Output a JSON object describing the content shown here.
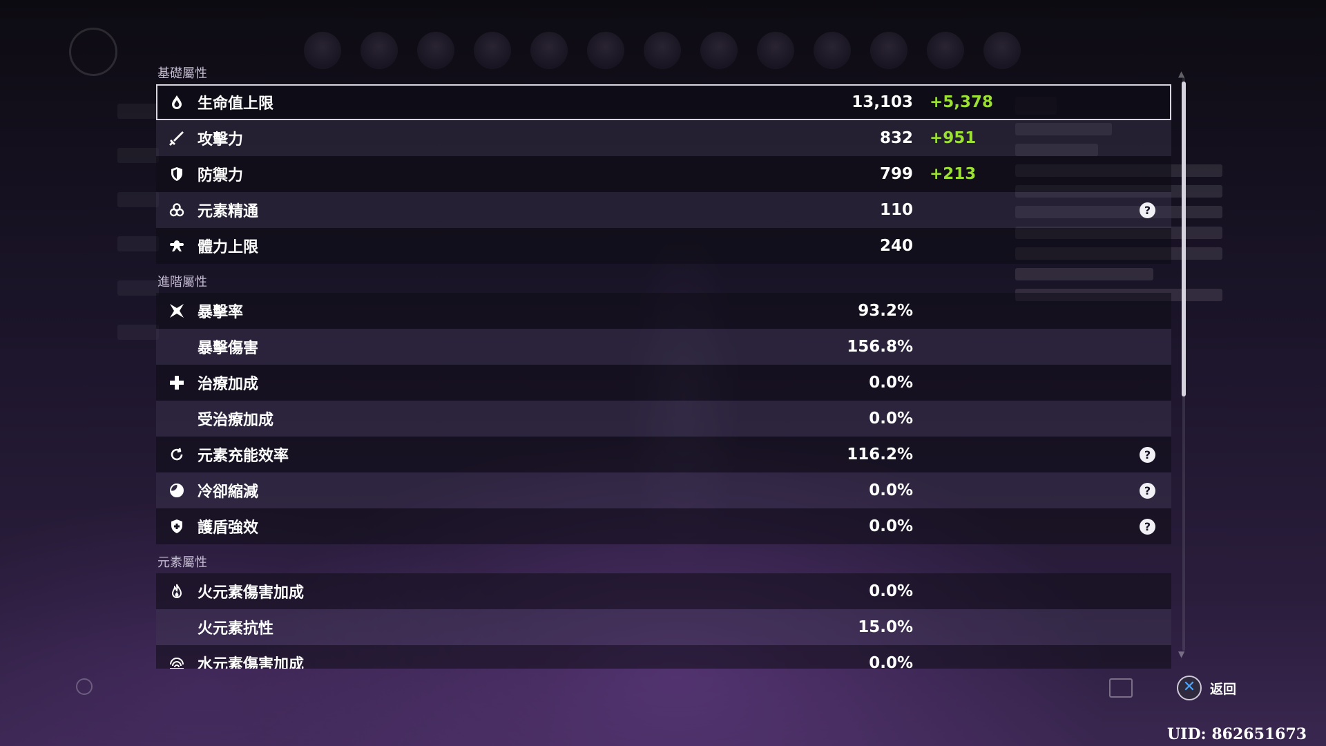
{
  "sections": [
    {
      "title": "基礎屬性",
      "rows": [
        {
          "icon": "hp-droplet-icon",
          "label": "生命值上限",
          "value": "13,103",
          "bonus": "+5,378",
          "help": false,
          "selected": true
        },
        {
          "icon": "sword-icon",
          "label": "攻擊力",
          "value": "832",
          "bonus": "+951",
          "help": false
        },
        {
          "icon": "shield-icon",
          "label": "防禦力",
          "value": "799",
          "bonus": "+213",
          "help": false
        },
        {
          "icon": "elemental-mastery-icon",
          "label": "元素精通",
          "value": "110",
          "bonus": "",
          "help": true
        },
        {
          "icon": "stamina-icon",
          "label": "體力上限",
          "value": "240",
          "bonus": "",
          "help": false
        }
      ]
    },
    {
      "title": "進階屬性",
      "rows": [
        {
          "icon": "crit-rate-icon",
          "label": "暴擊率",
          "value": "93.2%",
          "bonus": "",
          "help": false
        },
        {
          "icon": "",
          "label": "暴擊傷害",
          "value": "156.8%",
          "bonus": "",
          "help": false
        },
        {
          "icon": "healing-cross-icon",
          "label": "治療加成",
          "value": "0.0%",
          "bonus": "",
          "help": false
        },
        {
          "icon": "",
          "label": "受治療加成",
          "value": "0.0%",
          "bonus": "",
          "help": false
        },
        {
          "icon": "energy-recharge-icon",
          "label": "元素充能效率",
          "value": "116.2%",
          "bonus": "",
          "help": true
        },
        {
          "icon": "cooldown-icon",
          "label": "冷卻縮減",
          "value": "0.0%",
          "bonus": "",
          "help": true
        },
        {
          "icon": "shield-strength-icon",
          "label": "護盾強效",
          "value": "0.0%",
          "bonus": "",
          "help": true
        }
      ]
    },
    {
      "title": "元素屬性",
      "rows": [
        {
          "icon": "pyro-icon",
          "label": "火元素傷害加成",
          "value": "0.0%",
          "bonus": "",
          "help": false
        },
        {
          "icon": "",
          "label": "火元素抗性",
          "value": "15.0%",
          "bonus": "",
          "help": false
        },
        {
          "icon": "hydro-icon",
          "label": "水元素傷害加成",
          "value": "0.0%",
          "bonus": "",
          "help": false
        }
      ]
    }
  ],
  "help_glyph": "?",
  "footer": {
    "back_label": "返回",
    "back_glyph": "✕",
    "uid": "UID: 862651673"
  },
  "colors": {
    "bonus": "#9be033",
    "selected_border": "#d9d6e0"
  }
}
